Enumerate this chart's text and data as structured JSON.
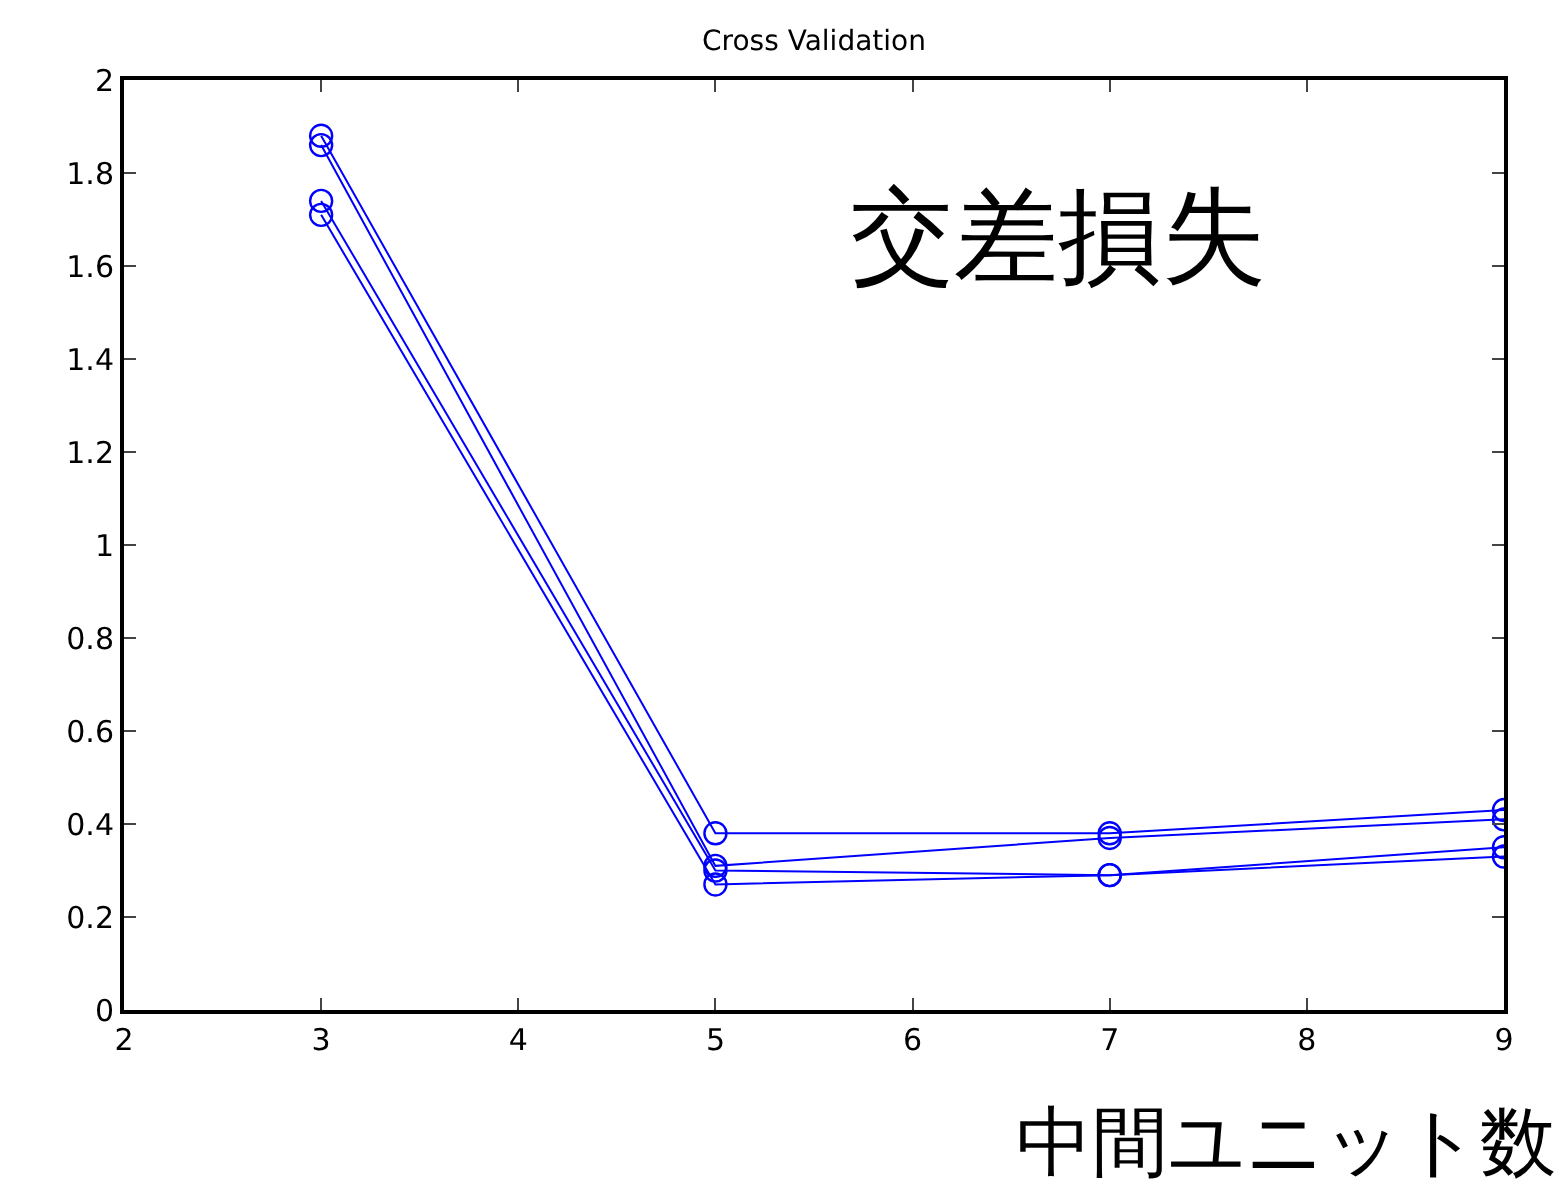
{
  "chart_data": {
    "type": "line",
    "title": "Cross Validation",
    "xlabel": "中間ユニット数",
    "annotations": [
      "交差損失"
    ],
    "x": [
      3,
      5,
      7,
      9
    ],
    "series": [
      {
        "color": "#0000ff",
        "values": [
          1.88,
          0.38,
          0.38,
          0.43
        ]
      },
      {
        "color": "#0000ff",
        "values": [
          1.86,
          0.31,
          0.37,
          0.41
        ]
      },
      {
        "color": "#0000ff",
        "values": [
          1.74,
          0.3,
          0.29,
          0.35
        ]
      },
      {
        "color": "#0000ff",
        "values": [
          1.71,
          0.27,
          0.29,
          0.33
        ]
      }
    ],
    "xlim": [
      2,
      9
    ],
    "xticks": [
      2,
      3,
      4,
      5,
      6,
      7,
      8,
      9
    ],
    "ylim": [
      0,
      2
    ],
    "yticks": [
      0,
      {
        "value": 0.2,
        "label": "0.2"
      },
      {
        "value": 0.4,
        "label": "0.4"
      },
      {
        "value": 0.6,
        "label": "0.6"
      },
      {
        "value": 0.8,
        "label": "0.8"
      },
      1,
      {
        "value": 1.2,
        "label": "1.2"
      },
      {
        "value": 1.4,
        "label": "1.4"
      },
      {
        "value": 1.6,
        "label": "1.6"
      },
      {
        "value": 1.8,
        "label": "1.8"
      },
      2
    ],
    "grid": false,
    "marker": "circle",
    "line_style": "solid"
  }
}
